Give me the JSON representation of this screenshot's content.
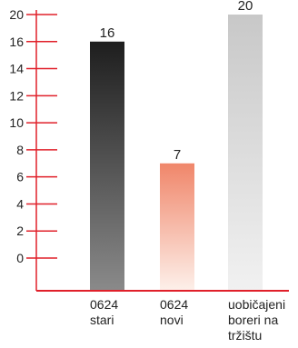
{
  "chart_data": {
    "type": "bar",
    "title": "",
    "xlabel": "",
    "ylabel": "",
    "ylim": [
      0,
      20
    ],
    "yticks": [
      "0",
      "2",
      "4",
      "6",
      "8",
      "10",
      "12",
      "14",
      "16",
      "20"
    ],
    "grid": false,
    "axis_color": "#e0202a",
    "categories": [
      [
        "0624",
        "stari"
      ],
      [
        "0624",
        "novi"
      ],
      [
        "uobičajeni",
        "boreri na",
        "tržištu"
      ]
    ],
    "values": [
      16,
      7,
      20
    ],
    "data_labels": [
      "16",
      "7",
      "20"
    ],
    "bar_gradients": [
      [
        "#1e1e1e",
        "#8a8a8a"
      ],
      [
        "#f0866a",
        "#fdf0ea"
      ],
      [
        "#c8c8c8",
        "#f1f1f1"
      ]
    ]
  }
}
